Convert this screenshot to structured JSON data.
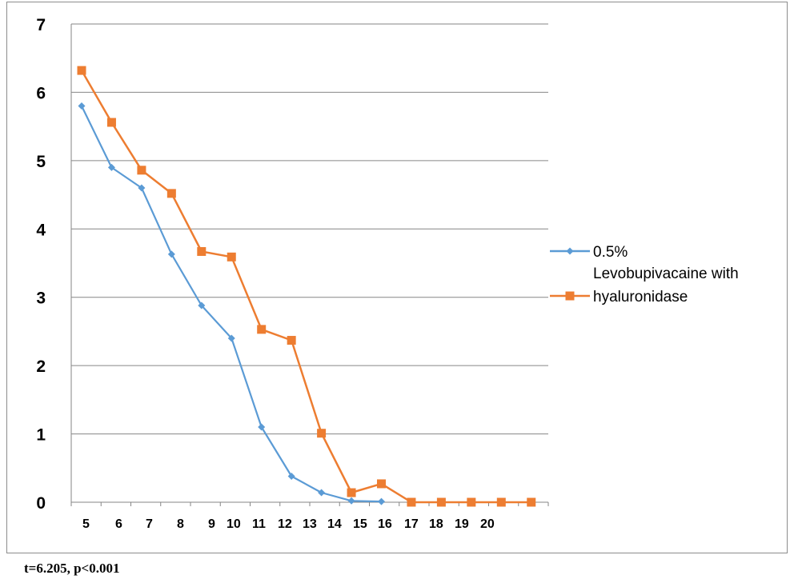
{
  "chart_data": {
    "type": "line",
    "title": "",
    "xlabel": "",
    "ylabel": "",
    "ylim": [
      0,
      7
    ],
    "yticks": [
      "0",
      "1",
      "2",
      "3",
      "4",
      "5",
      "6",
      "7"
    ],
    "xtick_labels": [
      "5",
      "6",
      "7",
      "8",
      "9",
      "10",
      "11",
      "12",
      "13",
      "14",
      "15",
      "16",
      "17",
      "18",
      "19",
      "20"
    ],
    "grid": "horizontal",
    "legend_placement": "right",
    "series": [
      {
        "name": "0.5% Levobupivacaine with hyaluronidase",
        "legend_lines": [
          "0.5%",
          "Levobupivacaine with",
          "hyaluronidase"
        ],
        "color": "#5b9bd5",
        "marker": "diamond",
        "values": [
          5.8,
          4.9,
          4.6,
          3.63,
          2.88,
          2.4,
          1.1,
          0.38,
          0.14,
          0.02,
          0.01
        ]
      },
      {
        "name": "",
        "color": "#ed7d31",
        "marker": "square",
        "values": [
          6.32,
          5.56,
          4.86,
          4.52,
          3.67,
          3.59,
          2.53,
          2.37,
          1.01,
          0.14,
          0.27,
          0,
          0,
          0,
          0,
          0
        ]
      }
    ]
  },
  "footnote": "t=6.205, p<0.001"
}
